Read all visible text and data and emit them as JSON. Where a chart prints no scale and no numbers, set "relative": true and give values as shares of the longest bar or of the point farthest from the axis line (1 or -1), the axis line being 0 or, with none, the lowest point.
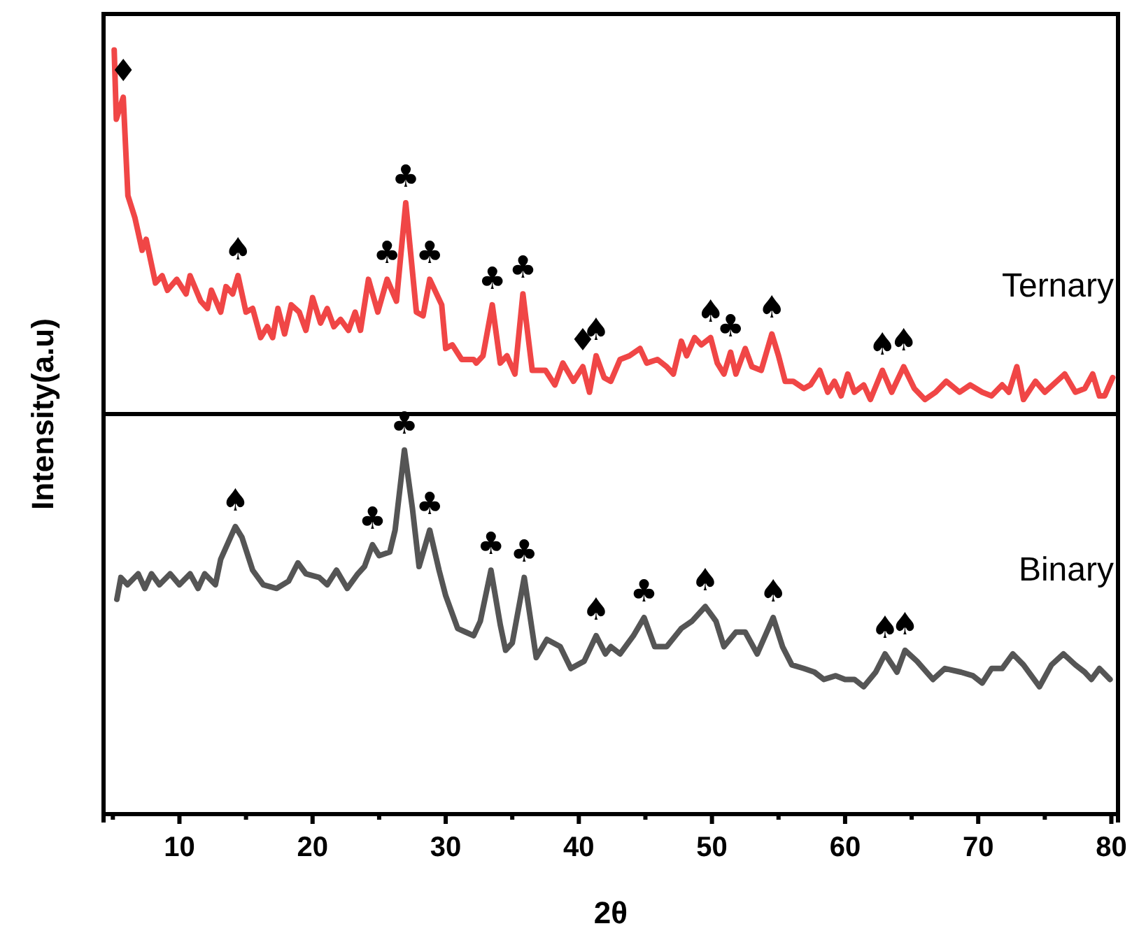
{
  "chart_data": [
    {
      "type": "line",
      "relative": true,
      "ylabel": "Intensity(a.u)",
      "xlim": [
        4.3,
        80.5
      ],
      "tick_labels": false,
      "x": [
        5.1,
        5.26,
        5.78,
        6.13,
        6.65,
        7.2,
        7.5,
        8.2,
        8.7,
        9.1,
        9.8,
        10.5,
        10.8,
        11.6,
        12.1,
        12.4,
        13.1,
        13.5,
        14.0,
        14.4,
        15.0,
        15.5,
        16.1,
        16.6,
        17.0,
        17.4,
        17.9,
        18.4,
        19.0,
        19.5,
        20.0,
        20.6,
        21.1,
        21.6,
        22.1,
        22.7,
        23.2,
        23.6,
        24.2,
        24.9,
        25.6,
        26.3,
        27.0,
        27.8,
        28.3,
        28.8,
        29.7,
        30.0,
        30.5,
        31.2,
        32.1,
        32.3,
        32.8,
        33.5,
        34.1,
        34.6,
        35.2,
        35.8,
        36.5,
        37.5,
        38.2,
        38.8,
        39.6,
        40.3,
        40.8,
        41.3,
        41.9,
        42.4,
        43.1,
        43.8,
        44.6,
        45.1,
        45.9,
        46.6,
        47.1,
        47.7,
        48.1,
        48.7,
        49.2,
        49.9,
        50.4,
        50.9,
        51.4,
        51.8,
        52.5,
        53.0,
        53.7,
        54.5,
        55.0,
        55.5,
        56.1,
        56.9,
        57.4,
        58.1,
        58.7,
        59.2,
        59.7,
        60.2,
        60.7,
        61.4,
        61.9,
        62.8,
        63.5,
        64.4,
        65.2,
        66.0,
        66.8,
        67.6,
        68.6,
        69.4,
        70.3,
        71.0,
        71.8,
        72.3,
        72.9,
        73.4,
        74.3,
        75.0,
        75.9,
        76.5,
        77.3,
        78.0,
        78.6,
        79.1,
        79.5,
        80.1
      ],
      "series": [
        {
          "name": "Ternary",
          "color": "#f04646",
          "values": [
            1.0,
            0.81,
            0.87,
            0.6,
            0.54,
            0.45,
            0.48,
            0.36,
            0.38,
            0.34,
            0.37,
            0.33,
            0.38,
            0.31,
            0.29,
            0.34,
            0.28,
            0.35,
            0.33,
            0.38,
            0.28,
            0.29,
            0.21,
            0.24,
            0.21,
            0.29,
            0.22,
            0.3,
            0.28,
            0.23,
            0.32,
            0.25,
            0.29,
            0.24,
            0.26,
            0.23,
            0.28,
            0.23,
            0.37,
            0.28,
            0.37,
            0.31,
            0.58,
            0.28,
            0.27,
            0.37,
            0.3,
            0.18,
            0.19,
            0.15,
            0.15,
            0.14,
            0.16,
            0.3,
            0.14,
            0.16,
            0.11,
            0.33,
            0.12,
            0.12,
            0.08,
            0.14,
            0.09,
            0.13,
            0.06,
            0.16,
            0.1,
            0.09,
            0.15,
            0.16,
            0.18,
            0.14,
            0.15,
            0.13,
            0.11,
            0.2,
            0.16,
            0.21,
            0.19,
            0.21,
            0.14,
            0.11,
            0.17,
            0.11,
            0.18,
            0.13,
            0.12,
            0.22,
            0.16,
            0.09,
            0.09,
            0.07,
            0.08,
            0.12,
            0.06,
            0.09,
            0.05,
            0.11,
            0.06,
            0.08,
            0.04,
            0.12,
            0.06,
            0.13,
            0.07,
            0.04,
            0.06,
            0.09,
            0.06,
            0.08,
            0.06,
            0.05,
            0.08,
            0.06,
            0.13,
            0.04,
            0.09,
            0.06,
            0.09,
            0.11,
            0.06,
            0.07,
            0.11,
            0.05,
            0.05,
            0.1
          ]
        }
      ],
      "annotations": [
        {
          "text": "♦",
          "x": 5.78,
          "y": 0.87
        },
        {
          "text": "♠",
          "x": 14.4,
          "y": 0.38
        },
        {
          "text": "♣",
          "x": 25.6,
          "y": 0.37
        },
        {
          "text": "♣",
          "x": 27.0,
          "y": 0.58
        },
        {
          "text": "♣",
          "x": 28.8,
          "y": 0.37
        },
        {
          "text": "♣",
          "x": 33.5,
          "y": 0.3
        },
        {
          "text": "♣",
          "x": 35.8,
          "y": 0.33
        },
        {
          "text": "♦",
          "x": 40.3,
          "y": 0.13
        },
        {
          "text": "♠",
          "x": 41.3,
          "y": 0.16
        },
        {
          "text": "♠",
          "x": 49.9,
          "y": 0.21
        },
        {
          "text": "♣",
          "x": 51.4,
          "y": 0.17
        },
        {
          "text": "♠",
          "x": 54.5,
          "y": 0.22
        },
        {
          "text": "♠",
          "x": 62.8,
          "y": 0.12
        },
        {
          "text": "♠",
          "x": 64.4,
          "y": 0.13
        }
      ]
    },
    {
      "type": "line",
      "relative": true,
      "xlabel": "2θ",
      "xlim": [
        4.3,
        80.5
      ],
      "tick_labels": "x",
      "xticks": [
        {
          "value": 5,
          "label": null
        },
        10,
        {
          "value": 15,
          "label": null
        },
        20,
        {
          "value": 25,
          "label": null
        },
        30,
        {
          "value": 35,
          "label": null
        },
        40,
        {
          "value": 45,
          "label": null
        },
        50,
        {
          "value": 55,
          "label": null
        },
        60,
        {
          "value": 65,
          "label": null
        },
        70,
        {
          "value": 75,
          "label": null
        },
        80
      ],
      "x": [
        5.3,
        5.6,
        6.1,
        6.9,
        7.4,
        7.9,
        8.5,
        9.3,
        10.0,
        10.8,
        11.4,
        11.9,
        12.7,
        13.1,
        14.2,
        14.7,
        15.5,
        16.3,
        17.3,
        18.2,
        18.9,
        19.5,
        20.5,
        21.1,
        21.8,
        22.6,
        23.4,
        23.9,
        24.5,
        25.0,
        25.8,
        26.2,
        26.9,
        27.5,
        28.0,
        28.8,
        29.5,
        30.0,
        30.9,
        31.5,
        32.1,
        32.6,
        33.4,
        34.1,
        34.5,
        35.0,
        35.9,
        36.8,
        37.6,
        38.6,
        39.4,
        40.4,
        41.3,
        42.0,
        42.4,
        43.1,
        44.1,
        44.9,
        45.7,
        46.6,
        47.7,
        48.5,
        49.5,
        50.3,
        50.9,
        51.8,
        52.5,
        53.4,
        54.6,
        55.3,
        56.0,
        56.9,
        57.7,
        58.4,
        59.3,
        60.0,
        60.7,
        61.4,
        62.3,
        63.0,
        63.9,
        64.5,
        65.4,
        66.6,
        67.5,
        68.7,
        69.6,
        70.3,
        71.0,
        71.8,
        72.6,
        73.4,
        74.6,
        75.5,
        76.4,
        77.3,
        78.0,
        78.5,
        79.1,
        79.9
      ],
      "series": [
        {
          "name": "Binary",
          "color": "#555555",
          "values": [
            0.59,
            0.65,
            0.63,
            0.66,
            0.62,
            0.66,
            0.63,
            0.66,
            0.63,
            0.66,
            0.62,
            0.66,
            0.63,
            0.7,
            0.79,
            0.76,
            0.67,
            0.63,
            0.62,
            0.64,
            0.69,
            0.66,
            0.65,
            0.63,
            0.67,
            0.62,
            0.66,
            0.68,
            0.74,
            0.71,
            0.72,
            0.78,
            1.0,
            0.84,
            0.68,
            0.78,
            0.67,
            0.6,
            0.51,
            0.5,
            0.49,
            0.53,
            0.67,
            0.52,
            0.45,
            0.47,
            0.65,
            0.43,
            0.48,
            0.46,
            0.4,
            0.42,
            0.49,
            0.44,
            0.46,
            0.44,
            0.49,
            0.54,
            0.46,
            0.46,
            0.51,
            0.53,
            0.57,
            0.53,
            0.46,
            0.5,
            0.5,
            0.44,
            0.54,
            0.46,
            0.41,
            0.4,
            0.39,
            0.37,
            0.38,
            0.37,
            0.37,
            0.35,
            0.39,
            0.44,
            0.39,
            0.45,
            0.42,
            0.37,
            0.4,
            0.39,
            0.38,
            0.36,
            0.4,
            0.4,
            0.44,
            0.41,
            0.35,
            0.41,
            0.44,
            0.41,
            0.39,
            0.37,
            0.4,
            0.37
          ]
        }
      ],
      "annotations": [
        {
          "text": "♠",
          "x": 14.2,
          "y": 0.79
        },
        {
          "text": "♣",
          "x": 24.5,
          "y": 0.74
        },
        {
          "text": "♣",
          "x": 26.9,
          "y": 1.0
        },
        {
          "text": "♣",
          "x": 28.8,
          "y": 0.78
        },
        {
          "text": "♣",
          "x": 33.4,
          "y": 0.67
        },
        {
          "text": "♣",
          "x": 35.9,
          "y": 0.65
        },
        {
          "text": "♠",
          "x": 41.3,
          "y": 0.49
        },
        {
          "text": "♣",
          "x": 44.9,
          "y": 0.54
        },
        {
          "text": "♠",
          "x": 49.5,
          "y": 0.57
        },
        {
          "text": "♠",
          "x": 54.6,
          "y": 0.54
        },
        {
          "text": "♠",
          "x": 63.0,
          "y": 0.44
        },
        {
          "text": "♠",
          "x": 64.5,
          "y": 0.45
        }
      ]
    }
  ]
}
